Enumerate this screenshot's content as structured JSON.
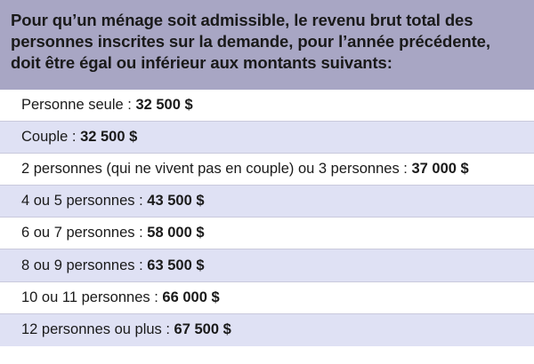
{
  "header": {
    "text": "Pour qu’un ménage soit admissible, le revenu brut total des personnes inscrites sur la demande, pour l’année précédente, doit être égal ou inférieur aux montants suivants:"
  },
  "rows": [
    {
      "label": "Personne seule",
      "amount": "32 500 $"
    },
    {
      "label": "Couple",
      "amount": "32 500 $"
    },
    {
      "label": "2 personnes (qui ne vivent pas en couple) ou 3 personnes",
      "amount": "37 000 $"
    },
    {
      "label": "4 ou 5 personnes",
      "amount": "43 500 $"
    },
    {
      "label": "6 ou 7 personnes",
      "amount": "58 000 $"
    },
    {
      "label": "8 ou 9 personnes",
      "amount": "63 500 $"
    },
    {
      "label": "10 ou 11 personnes",
      "amount": "66 000 $"
    },
    {
      "label": "12 personnes ou plus",
      "amount": "67 500 $"
    }
  ],
  "colors": {
    "header_bg": "#a8a6c4",
    "row_alt_bg": "#dfe1f4",
    "row_bg": "#ffffff"
  }
}
